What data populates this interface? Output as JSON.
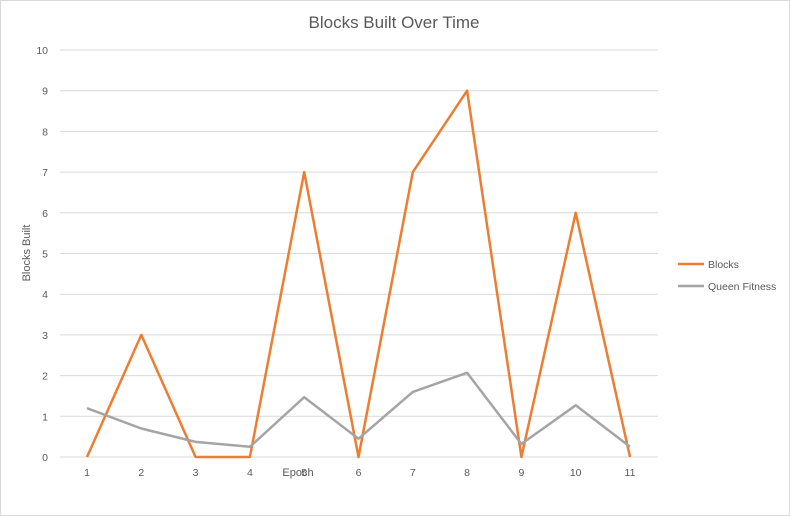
{
  "chart_data": {
    "type": "line",
    "title": "Blocks Built Over Time",
    "xlabel": "Epoch",
    "ylabel": "Blocks Built",
    "categories": [
      "1",
      "2",
      "3",
      "4",
      "5",
      "6",
      "7",
      "8",
      "9",
      "10",
      "11"
    ],
    "ylim": [
      0,
      10
    ],
    "yticks": [
      "0",
      "1",
      "2",
      "3",
      "4",
      "5",
      "6",
      "7",
      "8",
      "9",
      "10"
    ],
    "grid": true,
    "legend_position": "right",
    "series": [
      {
        "name": "Blocks",
        "color": "#ed7d31",
        "values": [
          0,
          3,
          0,
          0,
          7,
          0,
          7,
          9,
          0,
          6,
          0
        ]
      },
      {
        "name": "Queen Fitness",
        "color": "#a5a5a5",
        "values": [
          1.2,
          0.7,
          0.37,
          0.25,
          1.47,
          0.45,
          1.6,
          2.07,
          0.32,
          1.27,
          0.25
        ]
      }
    ]
  }
}
